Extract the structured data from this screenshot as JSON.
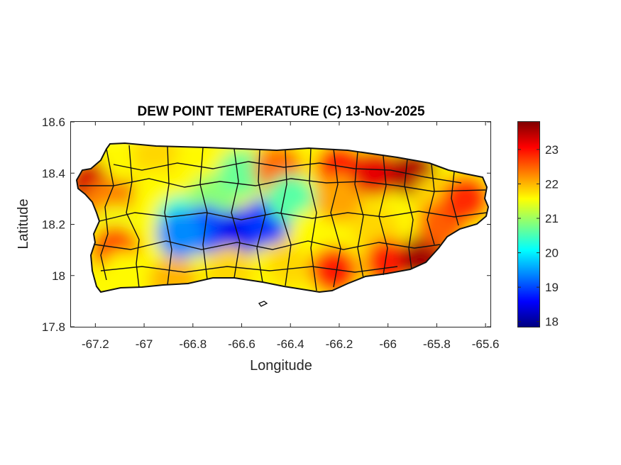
{
  "chart_data": {
    "type": "heatmap",
    "title": "DEW POINT TEMPERATURE (C) 13-Nov-2025",
    "xlabel": "Longitude",
    "ylabel": "Latitude",
    "xlim": [
      -67.3,
      -65.58
    ],
    "ylim": [
      17.8,
      18.6
    ],
    "xticks": [
      -67.2,
      -67,
      -66.8,
      -66.6,
      -66.4,
      -66.2,
      -66,
      -65.8,
      -65.6
    ],
    "xtick_labels": [
      "-67.2",
      "-67",
      "-66.8",
      "-66.6",
      "-66.4",
      "-66.2",
      "-66",
      "-65.8",
      "-65.6"
    ],
    "yticks": [
      17.8,
      18,
      18.2,
      18.4,
      18.6
    ],
    "ytick_labels": [
      "17.8",
      "18",
      "18.2",
      "18.4",
      "18.6"
    ],
    "colorbar": {
      "colormap": "jet",
      "range": [
        17.85,
        23.8
      ],
      "ticks": [
        18,
        19,
        20,
        21,
        22,
        23
      ],
      "tick_labels": [
        "18",
        "19",
        "20",
        "21",
        "22",
        "23"
      ]
    },
    "field_samples": [
      {
        "lon": -67.22,
        "lat": 18.36,
        "value": 23.3
      },
      {
        "lon": -67.05,
        "lat": 18.38,
        "value": 23.2
      },
      {
        "lon": -67.08,
        "lat": 18.46,
        "value": 21.6
      },
      {
        "lon": -67.15,
        "lat": 18.28,
        "value": 22.3
      },
      {
        "lon": -67.12,
        "lat": 18.18,
        "value": 21.5
      },
      {
        "lon": -67.12,
        "lat": 18.1,
        "value": 22.6
      },
      {
        "lon": -67.08,
        "lat": 18.0,
        "value": 21.6
      },
      {
        "lon": -66.95,
        "lat": 18.47,
        "value": 21.8
      },
      {
        "lon": -66.95,
        "lat": 18.32,
        "value": 21.6
      },
      {
        "lon": -66.85,
        "lat": 18.22,
        "value": 20.4
      },
      {
        "lon": -66.85,
        "lat": 18.06,
        "value": 21.5
      },
      {
        "lon": -66.88,
        "lat": 17.98,
        "value": 22.0
      },
      {
        "lon": -66.78,
        "lat": 18.42,
        "value": 21.6
      },
      {
        "lon": -66.72,
        "lat": 18.3,
        "value": 20.9
      },
      {
        "lon": -66.75,
        "lat": 18.18,
        "value": 19.0
      },
      {
        "lon": -66.85,
        "lat": 18.16,
        "value": 19.4
      },
      {
        "lon": -66.6,
        "lat": 18.17,
        "value": 18.5
      },
      {
        "lon": -66.5,
        "lat": 18.21,
        "value": 18.9
      },
      {
        "lon": -66.6,
        "lat": 18.4,
        "value": 20.7
      },
      {
        "lon": -66.65,
        "lat": 18.02,
        "value": 21.8
      },
      {
        "lon": -66.45,
        "lat": 18.42,
        "value": 22.4
      },
      {
        "lon": -66.4,
        "lat": 18.3,
        "value": 20.6
      },
      {
        "lon": -66.4,
        "lat": 18.05,
        "value": 21.8
      },
      {
        "lon": -66.3,
        "lat": 18.17,
        "value": 21.6
      },
      {
        "lon": -66.2,
        "lat": 18.42,
        "value": 23.0
      },
      {
        "lon": -66.2,
        "lat": 18.3,
        "value": 22.1
      },
      {
        "lon": -66.22,
        "lat": 18.02,
        "value": 22.9
      },
      {
        "lon": -66.05,
        "lat": 18.4,
        "value": 23.2
      },
      {
        "lon": -66.05,
        "lat": 18.18,
        "value": 21.8
      },
      {
        "lon": -66.0,
        "lat": 18.05,
        "value": 22.9
      },
      {
        "lon": -65.9,
        "lat": 18.4,
        "value": 23.5
      },
      {
        "lon": -65.85,
        "lat": 18.07,
        "value": 23.6
      },
      {
        "lon": -65.8,
        "lat": 18.3,
        "value": 21.8
      },
      {
        "lon": -65.78,
        "lat": 18.2,
        "value": 22.5
      },
      {
        "lon": -65.68,
        "lat": 18.3,
        "value": 22.8
      }
    ]
  }
}
